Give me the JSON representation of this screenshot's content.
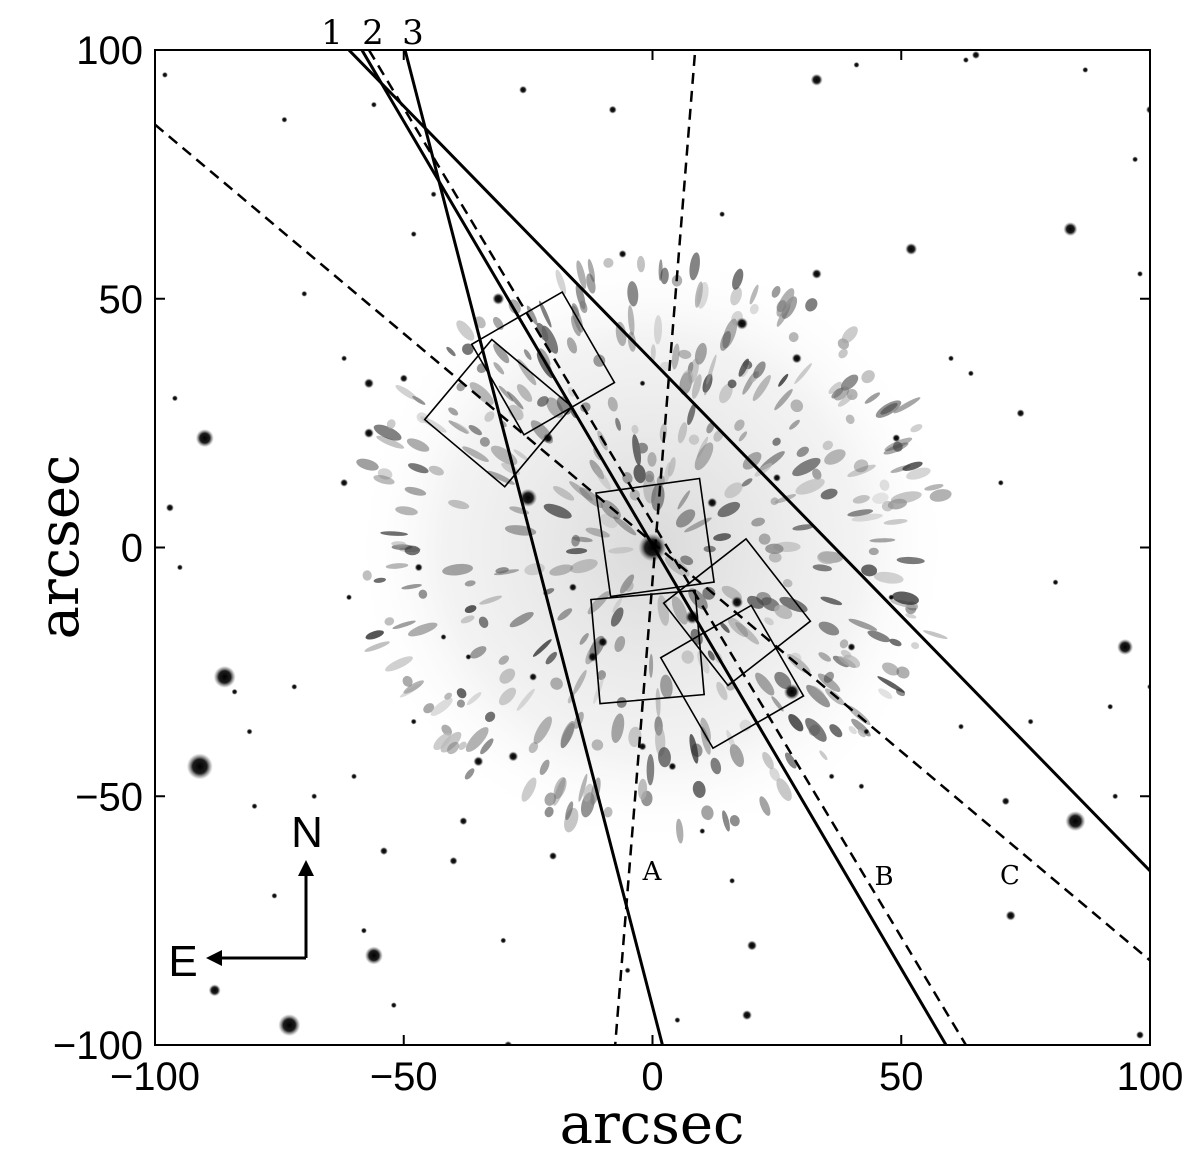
{
  "axes": {
    "xlabel": "arcsec",
    "ylabel": "arcsec",
    "xlim": [
      -100,
      100
    ],
    "ylim": [
      -100,
      100
    ],
    "xticks": [
      "−100",
      "−50",
      "0",
      "50",
      "100"
    ],
    "yticks": [
      "100",
      "50",
      "0",
      "−50",
      "−100"
    ]
  },
  "slits_solid": [
    {
      "label": "1",
      "p1": [
        -62,
        101
      ],
      "p2": [
        100,
        -65
      ]
    },
    {
      "label": "2",
      "p1": [
        -59,
        101
      ],
      "p2": [
        59,
        -100
      ]
    },
    {
      "label": "3",
      "p1": [
        -50,
        101
      ],
      "p2": [
        2,
        -100
      ]
    }
  ],
  "slits_dashed": [
    {
      "label": "A",
      "p1": [
        8.5,
        99
      ],
      "p2": [
        -7.5,
        -100
      ]
    },
    {
      "label": "B",
      "p1": [
        -57,
        100
      ],
      "p2": [
        63,
        -100
      ]
    },
    {
      "label": "C",
      "p1": [
        -100,
        85
      ],
      "p2": [
        100,
        -83
      ]
    }
  ],
  "apertures": [
    {
      "center": [
        0.5,
        2
      ],
      "size": 10.5,
      "angle": -8
    },
    {
      "center": [
        -1,
        -20
      ],
      "size": 10.5,
      "angle": -5
    },
    {
      "center": [
        -22,
        37
      ],
      "size": 10.5,
      "angle": -30
    },
    {
      "center": [
        -31,
        27
      ],
      "size": 10.5,
      "angle": 40
    },
    {
      "center": [
        17,
        -13
      ],
      "size": 10.5,
      "angle": -38
    },
    {
      "center": [
        16,
        -26
      ],
      "size": 10.5,
      "angle": -30
    }
  ],
  "compass": {
    "north": "N",
    "east": "E"
  },
  "colors": {
    "background": "#ffffff",
    "ink": "#000000"
  }
}
